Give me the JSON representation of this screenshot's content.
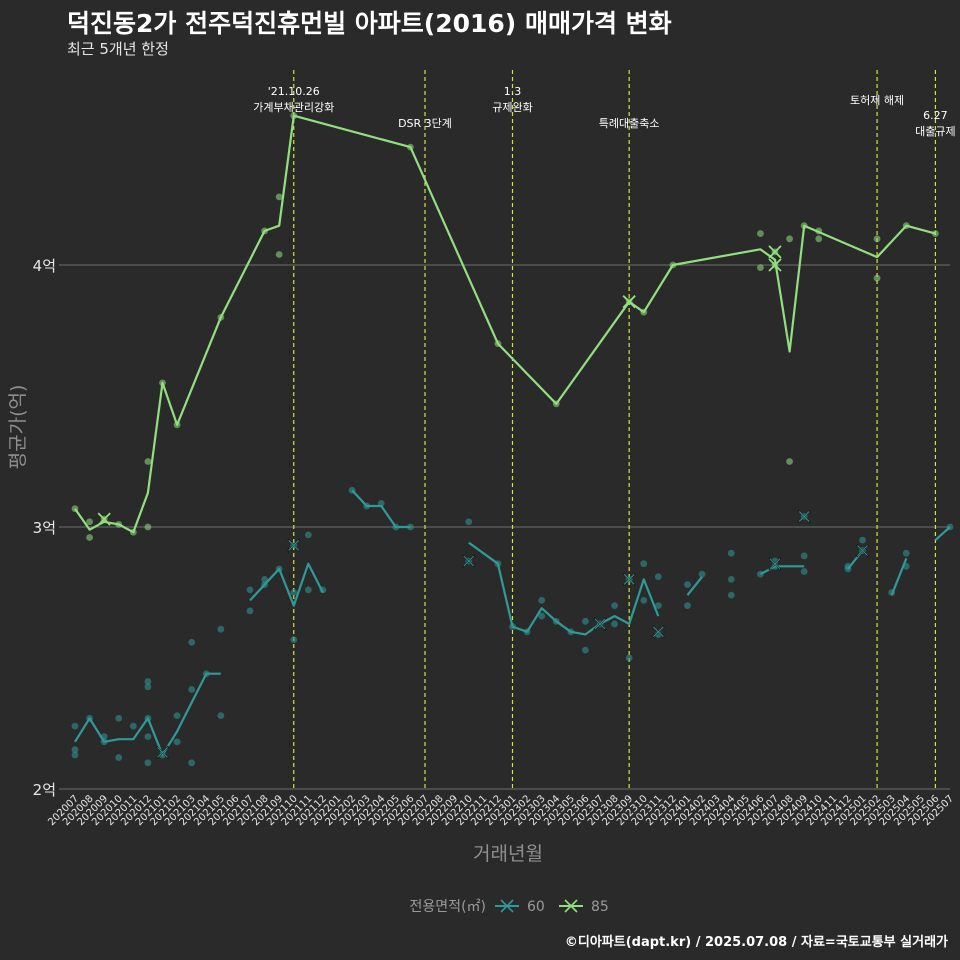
{
  "chart_data": {
    "type": "line",
    "title": "덕진동2가 전주덕진휴먼빌 아파트(2016) 매매가격 변화",
    "subtitle": "최근 5개년 한정",
    "xlabel": "거래년월",
    "ylabel": "평균가(억)",
    "ylim": [
      2.0,
      4.55
    ],
    "y_ticks": [
      {
        "value": 2,
        "label": "2억"
      },
      {
        "value": 3,
        "label": "3억"
      },
      {
        "value": 4,
        "label": "4억"
      }
    ],
    "categories": [
      "202007",
      "202008",
      "202009",
      "202010",
      "202011",
      "202012",
      "202101",
      "202102",
      "202103",
      "202104",
      "202105",
      "202106",
      "202107",
      "202108",
      "202109",
      "202110",
      "202111",
      "202112",
      "202201",
      "202202",
      "202203",
      "202204",
      "202205",
      "202206",
      "202207",
      "202208",
      "202209",
      "202210",
      "202211",
      "202212",
      "202301",
      "202302",
      "202303",
      "202304",
      "202305",
      "202306",
      "202307",
      "202308",
      "202309",
      "202310",
      "202311",
      "202312",
      "202401",
      "202402",
      "202403",
      "202404",
      "202405",
      "202406",
      "202407",
      "202408",
      "202409",
      "202410",
      "202411",
      "202412",
      "202501",
      "202502",
      "202503",
      "202504",
      "202505",
      "202506",
      "202507"
    ],
    "legend": {
      "title": "전용면적(㎡)",
      "position": "bottom",
      "entries": [
        "60",
        "85"
      ]
    },
    "colors": {
      "60": "#2e9b98",
      "85": "#90e07e",
      "background": "#2b2a2b",
      "vline": "#d5e33a",
      "text": "#e6e6e6",
      "axis_title": "#8f8f8f",
      "gridline": "#6e6e6e"
    },
    "series": [
      {
        "name": "60",
        "line": [
          [
            "202007",
            2.18
          ],
          [
            "202008",
            2.27
          ],
          [
            "202009",
            2.18
          ],
          [
            "202010",
            2.19
          ],
          [
            "202011",
            2.19
          ],
          [
            "202012",
            2.27
          ],
          [
            "202101",
            2.13
          ],
          [
            "202102",
            2.22
          ],
          [
            "202103",
            2.33
          ],
          [
            "202104",
            2.44
          ],
          [
            "202105",
            2.44
          ],
          null,
          [
            "202107",
            2.72
          ],
          [
            "202108",
            2.78
          ],
          [
            "202109",
            2.84
          ],
          [
            "202110",
            2.7
          ],
          [
            "202111",
            2.86
          ],
          [
            "202112",
            2.75
          ],
          null,
          [
            "202202",
            3.14
          ],
          [
            "202203",
            3.08
          ],
          [
            "202204",
            3.08
          ],
          [
            "202205",
            3.0
          ],
          [
            "202206",
            3.0
          ],
          null,
          [
            "202210",
            2.94
          ],
          [
            "202212",
            2.86
          ],
          [
            "202301",
            2.62
          ],
          [
            "202302",
            2.6
          ],
          [
            "202303",
            2.69
          ],
          [
            "202304",
            2.64
          ],
          [
            "202305",
            2.6
          ],
          [
            "202306",
            2.59
          ],
          [
            "202307",
            2.63
          ],
          [
            "202308",
            2.66
          ],
          [
            "202309",
            2.63
          ],
          [
            "202310",
            2.8
          ],
          [
            "202311",
            2.66
          ],
          null,
          [
            "202401",
            2.74
          ],
          [
            "202402",
            2.81
          ],
          null,
          [
            "202406",
            2.82
          ],
          [
            "202407",
            2.85
          ],
          [
            "202408",
            2.85
          ],
          [
            "202409",
            2.85
          ],
          null,
          [
            "202412",
            2.84
          ],
          [
            "202501",
            2.91
          ],
          null,
          [
            "202503",
            2.74
          ],
          [
            "202504",
            2.88
          ],
          null,
          [
            "202506",
            2.95
          ],
          [
            "202507",
            3.0
          ]
        ],
        "points": [
          [
            "202007",
            2.24
          ],
          [
            "202007",
            2.15
          ],
          [
            "202007",
            2.13
          ],
          [
            "202008",
            2.27
          ],
          [
            "202009",
            2.2
          ],
          [
            "202009",
            2.18
          ],
          [
            "202010",
            2.27
          ],
          [
            "202010",
            2.12
          ],
          [
            "202011",
            2.24
          ],
          [
            "202012",
            2.39
          ],
          [
            "202012",
            2.1
          ],
          [
            "202012",
            2.41
          ],
          [
            "202012",
            2.27
          ],
          [
            "202012",
            2.2
          ],
          [
            "202101",
            2.13
          ],
          [
            "202102",
            2.28
          ],
          [
            "202102",
            2.18
          ],
          [
            "202103",
            2.56
          ],
          [
            "202103",
            2.38
          ],
          [
            "202103",
            2.1
          ],
          [
            "202104",
            2.44
          ],
          [
            "202105",
            2.28
          ],
          [
            "202105",
            2.61
          ],
          [
            "202107",
            2.76
          ],
          [
            "202107",
            2.68
          ],
          [
            "202108",
            2.8
          ],
          [
            "202108",
            2.78
          ],
          [
            "202109",
            2.84
          ],
          [
            "202110",
            2.93
          ],
          [
            "202110",
            2.57
          ],
          [
            "202110",
            2.75
          ],
          [
            "202111",
            2.97
          ],
          [
            "202111",
            2.76
          ],
          [
            "202112",
            2.76
          ],
          [
            "202202",
            3.14
          ],
          [
            "202203",
            3.08
          ],
          [
            "202204",
            3.09
          ],
          [
            "202205",
            3.0
          ],
          [
            "202206",
            3.0
          ],
          [
            "202210",
            3.02
          ],
          [
            "202210",
            2.87
          ],
          [
            "202212",
            2.86
          ],
          [
            "202301",
            2.62
          ],
          [
            "202302",
            2.6
          ],
          [
            "202303",
            2.72
          ],
          [
            "202303",
            2.66
          ],
          [
            "202304",
            2.64
          ],
          [
            "202305",
            2.6
          ],
          [
            "202306",
            2.64
          ],
          [
            "202306",
            2.53
          ],
          [
            "202307",
            2.63
          ],
          [
            "202308",
            2.7
          ],
          [
            "202308",
            2.63
          ],
          [
            "202309",
            2.8
          ],
          [
            "202309",
            2.5
          ],
          [
            "202310",
            2.86
          ],
          [
            "202310",
            2.72
          ],
          [
            "202311",
            2.81
          ],
          [
            "202311",
            2.7
          ],
          [
            "202311",
            2.59
          ],
          [
            "202401",
            2.78
          ],
          [
            "202401",
            2.7
          ],
          [
            "202402",
            2.82
          ],
          [
            "202404",
            2.8
          ],
          [
            "202404",
            2.74
          ],
          [
            "202404",
            2.9
          ],
          [
            "202406",
            2.82
          ],
          [
            "202407",
            2.87
          ],
          [
            "202407",
            2.85
          ],
          [
            "202409",
            2.89
          ],
          [
            "202409",
            2.83
          ],
          [
            "202409",
            3.04
          ],
          [
            "202412",
            2.84
          ],
          [
            "202412",
            2.85
          ],
          [
            "202501",
            2.95
          ],
          [
            "202501",
            2.91
          ],
          [
            "202503",
            2.75
          ],
          [
            "202504",
            2.9
          ],
          [
            "202504",
            2.85
          ],
          [
            "202507",
            3.0
          ]
        ],
        "cross_marks": [
          [
            "202009",
            3.03
          ],
          [
            "202101",
            2.14
          ],
          [
            "202110",
            2.93
          ],
          [
            "202210",
            2.87
          ],
          [
            "202307",
            2.63
          ],
          [
            "202309",
            2.8
          ],
          [
            "202311",
            2.6
          ],
          [
            "202407",
            2.86
          ],
          [
            "202409",
            3.04
          ],
          [
            "202501",
            2.91
          ]
        ]
      },
      {
        "name": "85",
        "line": [
          [
            "202007",
            3.07
          ],
          [
            "202008",
            2.99
          ],
          [
            "202009",
            3.02
          ],
          [
            "202010",
            3.01
          ],
          [
            "202011",
            2.98
          ],
          [
            "202012",
            3.13
          ],
          [
            "202101",
            3.55
          ],
          [
            "202102",
            3.39
          ],
          [
            "202105",
            3.8
          ],
          [
            "202108",
            4.13
          ],
          [
            "202109",
            4.15
          ],
          [
            "202110",
            4.57
          ],
          [
            "202206",
            4.45
          ],
          [
            "202212",
            3.7
          ],
          [
            "202304",
            3.47
          ],
          [
            "202309",
            3.86
          ],
          [
            "202310",
            3.82
          ],
          [
            "202312",
            4.0
          ],
          [
            "202406",
            4.06
          ],
          [
            "202407",
            4.02
          ],
          [
            "202408",
            3.67
          ],
          [
            "202409",
            4.15
          ],
          [
            "202502",
            4.03
          ],
          [
            "202504",
            4.15
          ],
          [
            "202506",
            4.12
          ]
        ],
        "points": [
          [
            "202007",
            3.07
          ],
          [
            "202008",
            3.02
          ],
          [
            "202008",
            2.96
          ],
          [
            "202009",
            3.03
          ],
          [
            "202010",
            3.01
          ],
          [
            "202011",
            2.98
          ],
          [
            "202012",
            3.25
          ],
          [
            "202012",
            3.0
          ],
          [
            "202101",
            3.55
          ],
          [
            "202102",
            3.39
          ],
          [
            "202105",
            3.8
          ],
          [
            "202108",
            4.13
          ],
          [
            "202109",
            4.26
          ],
          [
            "202109",
            4.04
          ],
          [
            "202110",
            4.57
          ],
          [
            "202206",
            4.45
          ],
          [
            "202212",
            3.7
          ],
          [
            "202304",
            3.47
          ],
          [
            "202309",
            3.86
          ],
          [
            "202310",
            3.82
          ],
          [
            "202312",
            4.0
          ],
          [
            "202406",
            4.12
          ],
          [
            "202406",
            3.99
          ],
          [
            "202407",
            4.05
          ],
          [
            "202407",
            4.0
          ],
          [
            "202408",
            4.1
          ],
          [
            "202408",
            3.25
          ],
          [
            "202409",
            4.15
          ],
          [
            "202410",
            4.1
          ],
          [
            "202410",
            4.13
          ],
          [
            "202502",
            4.1
          ],
          [
            "202502",
            3.95
          ],
          [
            "202504",
            4.15
          ],
          [
            "202506",
            4.12
          ]
        ],
        "cross_marks": [
          [
            "202009",
            3.03
          ],
          [
            "202309",
            3.86
          ],
          [
            "202407",
            4.05
          ],
          [
            "202407",
            4.0
          ]
        ]
      }
    ],
    "annotations": [
      {
        "x": "202110",
        "lines": [
          "'21.10.26",
          "가계부채관리강화"
        ],
        "level": 0
      },
      {
        "x": "202207",
        "lines": [
          "DSR 3단계"
        ],
        "level": 2
      },
      {
        "x": "202301",
        "lines": [
          "1.3",
          "규제완화"
        ],
        "level": 0
      },
      {
        "x": "202309",
        "lines": [
          "특례대출축소"
        ],
        "level": 2
      },
      {
        "x": "202502",
        "lines": [
          "토허제 해제"
        ],
        "level": 1
      },
      {
        "x": "202506",
        "lines": [
          "6.27",
          "대출규제"
        ],
        "level": 3
      }
    ]
  },
  "caption": "©디아파트(dapt.kr) / 2025.07.08 / 자료=국토교통부 실거래가"
}
